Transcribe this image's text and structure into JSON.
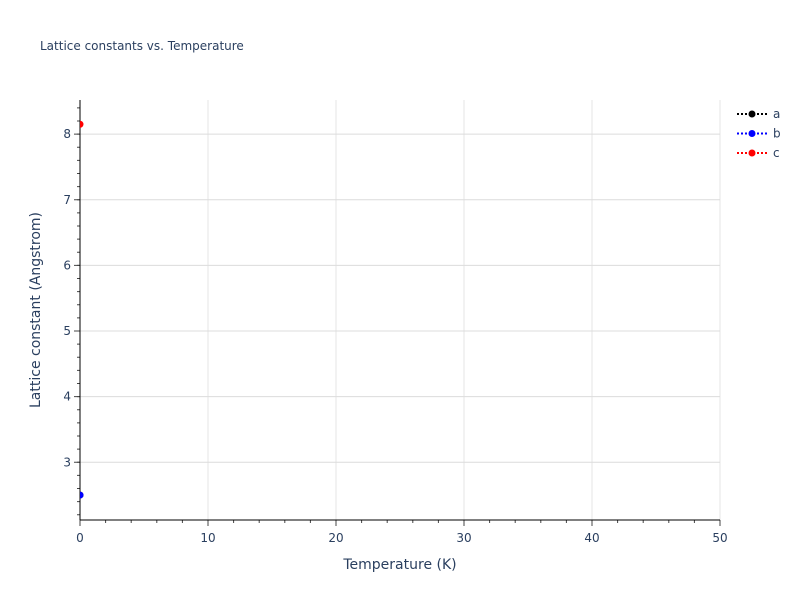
{
  "chart_data": {
    "type": "scatter",
    "title": "Lattice constants vs. Temperature",
    "xlabel": "Temperature (K)",
    "ylabel": "Lattice constant (Angstrom)",
    "xlim": [
      0,
      50
    ],
    "ylim": [
      2.12,
      8.52
    ],
    "xticks": [
      0,
      10,
      20,
      30,
      40,
      50
    ],
    "yticks": [
      3,
      4,
      5,
      6,
      7,
      8
    ],
    "grid": true,
    "legend_position": "top-right",
    "series": [
      {
        "name": "a",
        "color": "#000000",
        "x": [
          0
        ],
        "y": [
          2.5
        ]
      },
      {
        "name": "b",
        "color": "#0000ff",
        "x": [
          0
        ],
        "y": [
          2.5
        ]
      },
      {
        "name": "c",
        "color": "#ff0000",
        "x": [
          0
        ],
        "y": [
          8.15
        ]
      }
    ]
  }
}
